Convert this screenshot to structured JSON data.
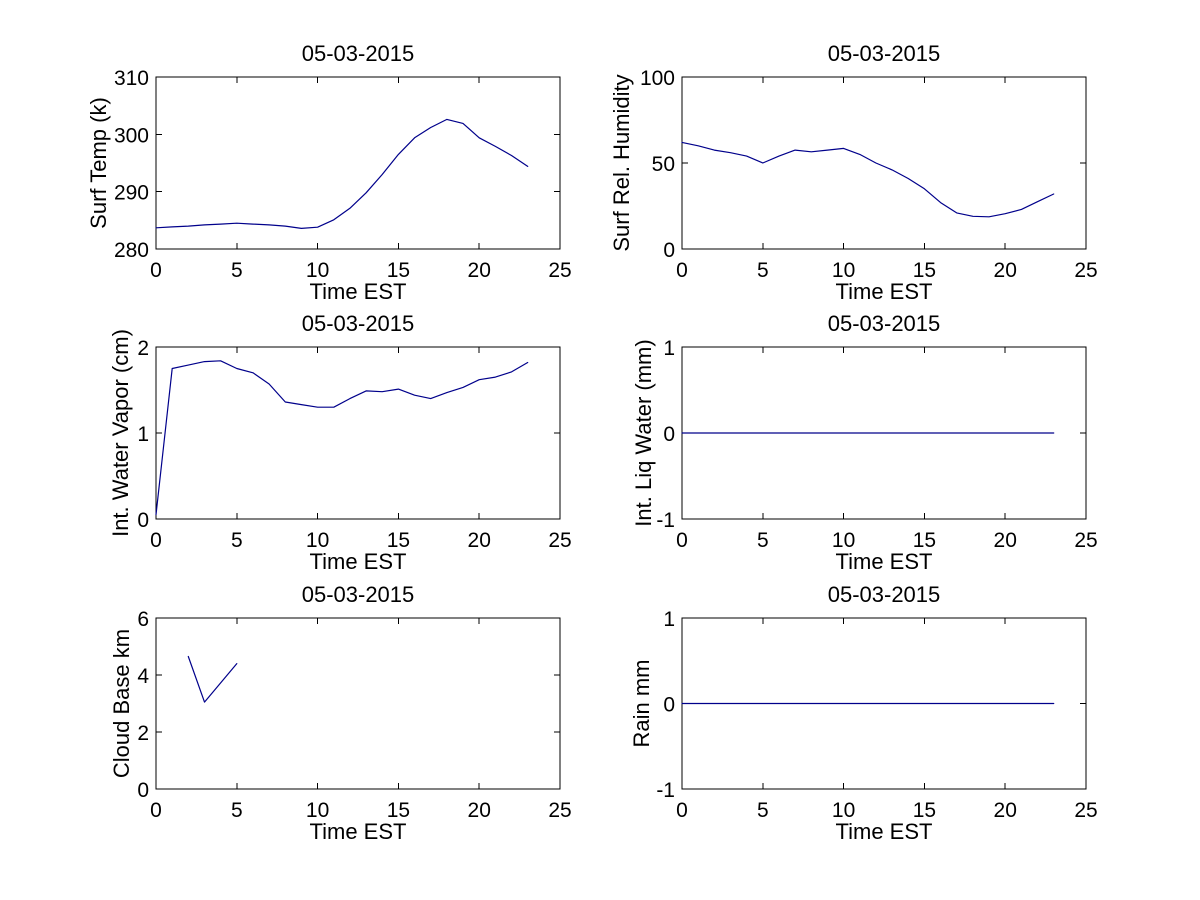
{
  "figure": {
    "background": "#ffffff",
    "axis_color": "#000000",
    "text_color": "#000000",
    "line_color": "#00008b"
  },
  "chart_data": [
    {
      "name": "surf-temp",
      "type": "line",
      "title": "05-03-2015",
      "xlabel": "Time EST",
      "ylabel": "Surf Temp (k)",
      "xlim": [
        0,
        25
      ],
      "ylim": [
        280,
        310
      ],
      "xticks": [
        0,
        5,
        10,
        15,
        20,
        25
      ],
      "yticks": [
        280,
        290,
        300,
        310
      ],
      "grid": false,
      "legend": null,
      "x": [
        0,
        1,
        2,
        3,
        4,
        5,
        6,
        7,
        8,
        9,
        10,
        11,
        12,
        13,
        14,
        15,
        16,
        17,
        18,
        19,
        20,
        21,
        22,
        23
      ],
      "y": [
        283.7,
        283.85,
        284.0,
        284.2,
        284.35,
        284.5,
        284.35,
        284.2,
        284.0,
        283.6,
        283.8,
        285.1,
        287.1,
        289.8,
        293.0,
        296.5,
        299.4,
        301.2,
        302.6,
        301.9,
        299.4,
        297.9,
        296.3,
        294.4
      ]
    },
    {
      "name": "surf-rel-humidity",
      "type": "line",
      "title": "05-03-2015",
      "xlabel": "Time EST",
      "ylabel": "Surf Rel. Humidity",
      "xlim": [
        0,
        25
      ],
      "ylim": [
        0,
        100
      ],
      "xticks": [
        0,
        5,
        10,
        15,
        20,
        25
      ],
      "yticks": [
        0,
        50,
        100
      ],
      "grid": false,
      "legend": null,
      "x": [
        0,
        1,
        2,
        3,
        4,
        5,
        6,
        7,
        8,
        9,
        10,
        11,
        12,
        13,
        14,
        15,
        16,
        17,
        18,
        19,
        20,
        21,
        22,
        23
      ],
      "y": [
        62,
        60,
        57.5,
        56,
        54,
        50,
        54,
        57.5,
        56.5,
        57.5,
        58.5,
        55,
        50,
        46,
        41,
        35,
        27,
        21,
        19,
        18.7,
        20.5,
        23,
        27.5,
        32
      ]
    },
    {
      "name": "int-water-vapor",
      "type": "line",
      "title": "05-03-2015",
      "xlabel": "Time EST",
      "ylabel": "Int. Water Vapor (cm)",
      "xlim": [
        0,
        25
      ],
      "ylim": [
        0,
        2
      ],
      "xticks": [
        0,
        5,
        10,
        15,
        20,
        25
      ],
      "yticks": [
        0,
        1,
        2
      ],
      "grid": false,
      "legend": null,
      "x": [
        0,
        1,
        2,
        3,
        4,
        5,
        6,
        7,
        8,
        9,
        10,
        11,
        12,
        13,
        14,
        15,
        16,
        17,
        18,
        19,
        20,
        21,
        22,
        23
      ],
      "y": [
        0.05,
        1.75,
        1.79,
        1.83,
        1.84,
        1.75,
        1.7,
        1.57,
        1.36,
        1.33,
        1.3,
        1.3,
        1.4,
        1.49,
        1.48,
        1.51,
        1.44,
        1.4,
        1.47,
        1.53,
        1.62,
        1.65,
        1.71,
        1.82
      ]
    },
    {
      "name": "int-liq-water",
      "type": "line",
      "title": "05-03-2015",
      "xlabel": "Time EST",
      "ylabel": "Int. Liq Water (mm)",
      "xlim": [
        0,
        25
      ],
      "ylim": [
        -1,
        1
      ],
      "xticks": [
        0,
        5,
        10,
        15,
        20,
        25
      ],
      "yticks": [
        -1,
        0,
        1
      ],
      "grid": false,
      "legend": null,
      "x": [
        0,
        1,
        2,
        3,
        4,
        5,
        6,
        7,
        8,
        9,
        10,
        11,
        12,
        13,
        14,
        15,
        16,
        17,
        18,
        19,
        20,
        21,
        22,
        23
      ],
      "y": [
        0,
        0,
        0,
        0,
        0,
        0,
        0,
        0,
        0,
        0,
        0,
        0,
        0,
        0,
        0,
        0,
        0,
        0,
        0,
        0,
        0,
        0,
        0,
        0
      ]
    },
    {
      "name": "cloud-base",
      "type": "line",
      "title": "05-03-2015",
      "xlabel": "Time EST",
      "ylabel": "Cloud Base km",
      "xlim": [
        0,
        25
      ],
      "ylim": [
        0,
        6
      ],
      "xticks": [
        0,
        5,
        10,
        15,
        20,
        25
      ],
      "yticks": [
        0,
        2,
        4,
        6
      ],
      "grid": false,
      "legend": null,
      "x": [
        2,
        3,
        5
      ],
      "y": [
        4.65,
        3.05,
        4.4
      ]
    },
    {
      "name": "rain",
      "type": "line",
      "title": "05-03-2015",
      "xlabel": "Time EST",
      "ylabel": "Rain mm",
      "xlim": [
        0,
        25
      ],
      "ylim": [
        -1,
        1
      ],
      "xticks": [
        0,
        5,
        10,
        15,
        20,
        25
      ],
      "yticks": [
        -1,
        0,
        1
      ],
      "grid": false,
      "legend": null,
      "x": [
        0,
        1,
        2,
        3,
        4,
        5,
        6,
        7,
        8,
        9,
        10,
        11,
        12,
        13,
        14,
        15,
        16,
        17,
        18,
        19,
        20,
        21,
        22,
        23
      ],
      "y": [
        0,
        0,
        0,
        0,
        0,
        0,
        0,
        0,
        0,
        0,
        0,
        0,
        0,
        0,
        0,
        0,
        0,
        0,
        0,
        0,
        0,
        0,
        0,
        0
      ]
    }
  ]
}
